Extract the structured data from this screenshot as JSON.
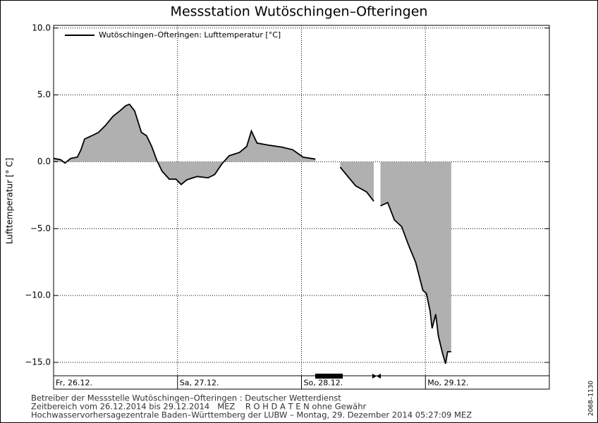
{
  "chart_data": {
    "type": "area-line",
    "title": "Messstation Wutöschingen–Ofteringen",
    "y_label": "Lufttemperatur [° C]",
    "xlim": [
      0,
      96
    ],
    "xticks": [
      {
        "value": 0,
        "label": "Fr, 26.12."
      },
      {
        "value": 24,
        "label": "Sa, 27.12."
      },
      {
        "value": 48,
        "label": "So, 28.12."
      },
      {
        "value": 72,
        "label": "Mo, 29.12."
      }
    ],
    "ylim": [
      -16,
      10.2
    ],
    "yticks": [
      {
        "value": -15,
        "label": "−15.0"
      },
      {
        "value": -10,
        "label": "−10.0"
      },
      {
        "value": -5,
        "label": "−5.0"
      },
      {
        "value": 0,
        "label": "0.0"
      },
      {
        "value": 5,
        "label": "5.0"
      },
      {
        "value": 10,
        "label": "10.0"
      }
    ],
    "grid": true,
    "legend": "top-left",
    "fill_color": "#b0b0b0",
    "x": [
      0,
      1.4,
      2.2,
      3.3,
      4.6,
      5.3,
      6,
      7.4,
      8.7,
      10,
      11.5,
      12.8,
      14,
      14.7,
      15.7,
      17,
      18,
      19,
      20,
      21,
      22.4,
      23.7,
      24.7,
      25.8,
      27.8,
      29.9,
      31.2,
      32.6,
      34,
      36,
      37.4,
      38.3,
      39.4,
      41.5,
      44.2,
      46.3,
      48.3,
      50.7,
      53,
      55.5,
      57.2,
      58.5,
      60.6,
      62,
      62.7,
      63.3,
      64.7,
      66,
      67.4,
      68.7,
      70.1,
      70.8,
      71.5,
      72.2,
      72.9,
      73.3,
      74,
      74.5,
      75.3,
      75.9,
      76.3,
      77
    ],
    "series": [
      {
        "name": "Wutöschingen–Ofteringen: Lufttemperatur [°C]",
        "color": "#000000",
        "values": [
          0.26,
          0.15,
          -0.1,
          0.25,
          0.35,
          0.9,
          1.7,
          1.95,
          2.2,
          2.7,
          3.4,
          3.8,
          4.2,
          4.3,
          3.8,
          2.2,
          1.95,
          1.15,
          0.1,
          -0.7,
          -1.3,
          -1.3,
          -1.7,
          -1.35,
          -1.1,
          -1.2,
          -0.95,
          -0.15,
          0.45,
          0.7,
          1.15,
          2.3,
          1.4,
          1.25,
          1.1,
          0.9,
          0.35,
          0.2,
          null,
          -0.4,
          -1.2,
          -1.8,
          -2.25,
          -2.95,
          null,
          -3.3,
          -3.05,
          -4.35,
          -4.85,
          -6.2,
          -7.5,
          -8.55,
          -9.6,
          -9.85,
          -11.15,
          -12.45,
          -11.4,
          -13,
          -14.3,
          -15.1,
          -14.2,
          -14.2
        ]
      }
    ]
  },
  "footer": [
    "Betreiber der Messstelle Wutöschingen–Ofteringen : Deutscher Wetterdienst",
    "Zeitbereich vom 26.12.2014 bis 29.12.2014   MEZ    R O H D A T E N ohne Gewähr",
    "Hochwasservorhersagezentrale Baden–Württemberg der LUBW – Montag, 29. Dezember 2014 05:27:09 MEZ"
  ],
  "side_note": "2068–1130"
}
